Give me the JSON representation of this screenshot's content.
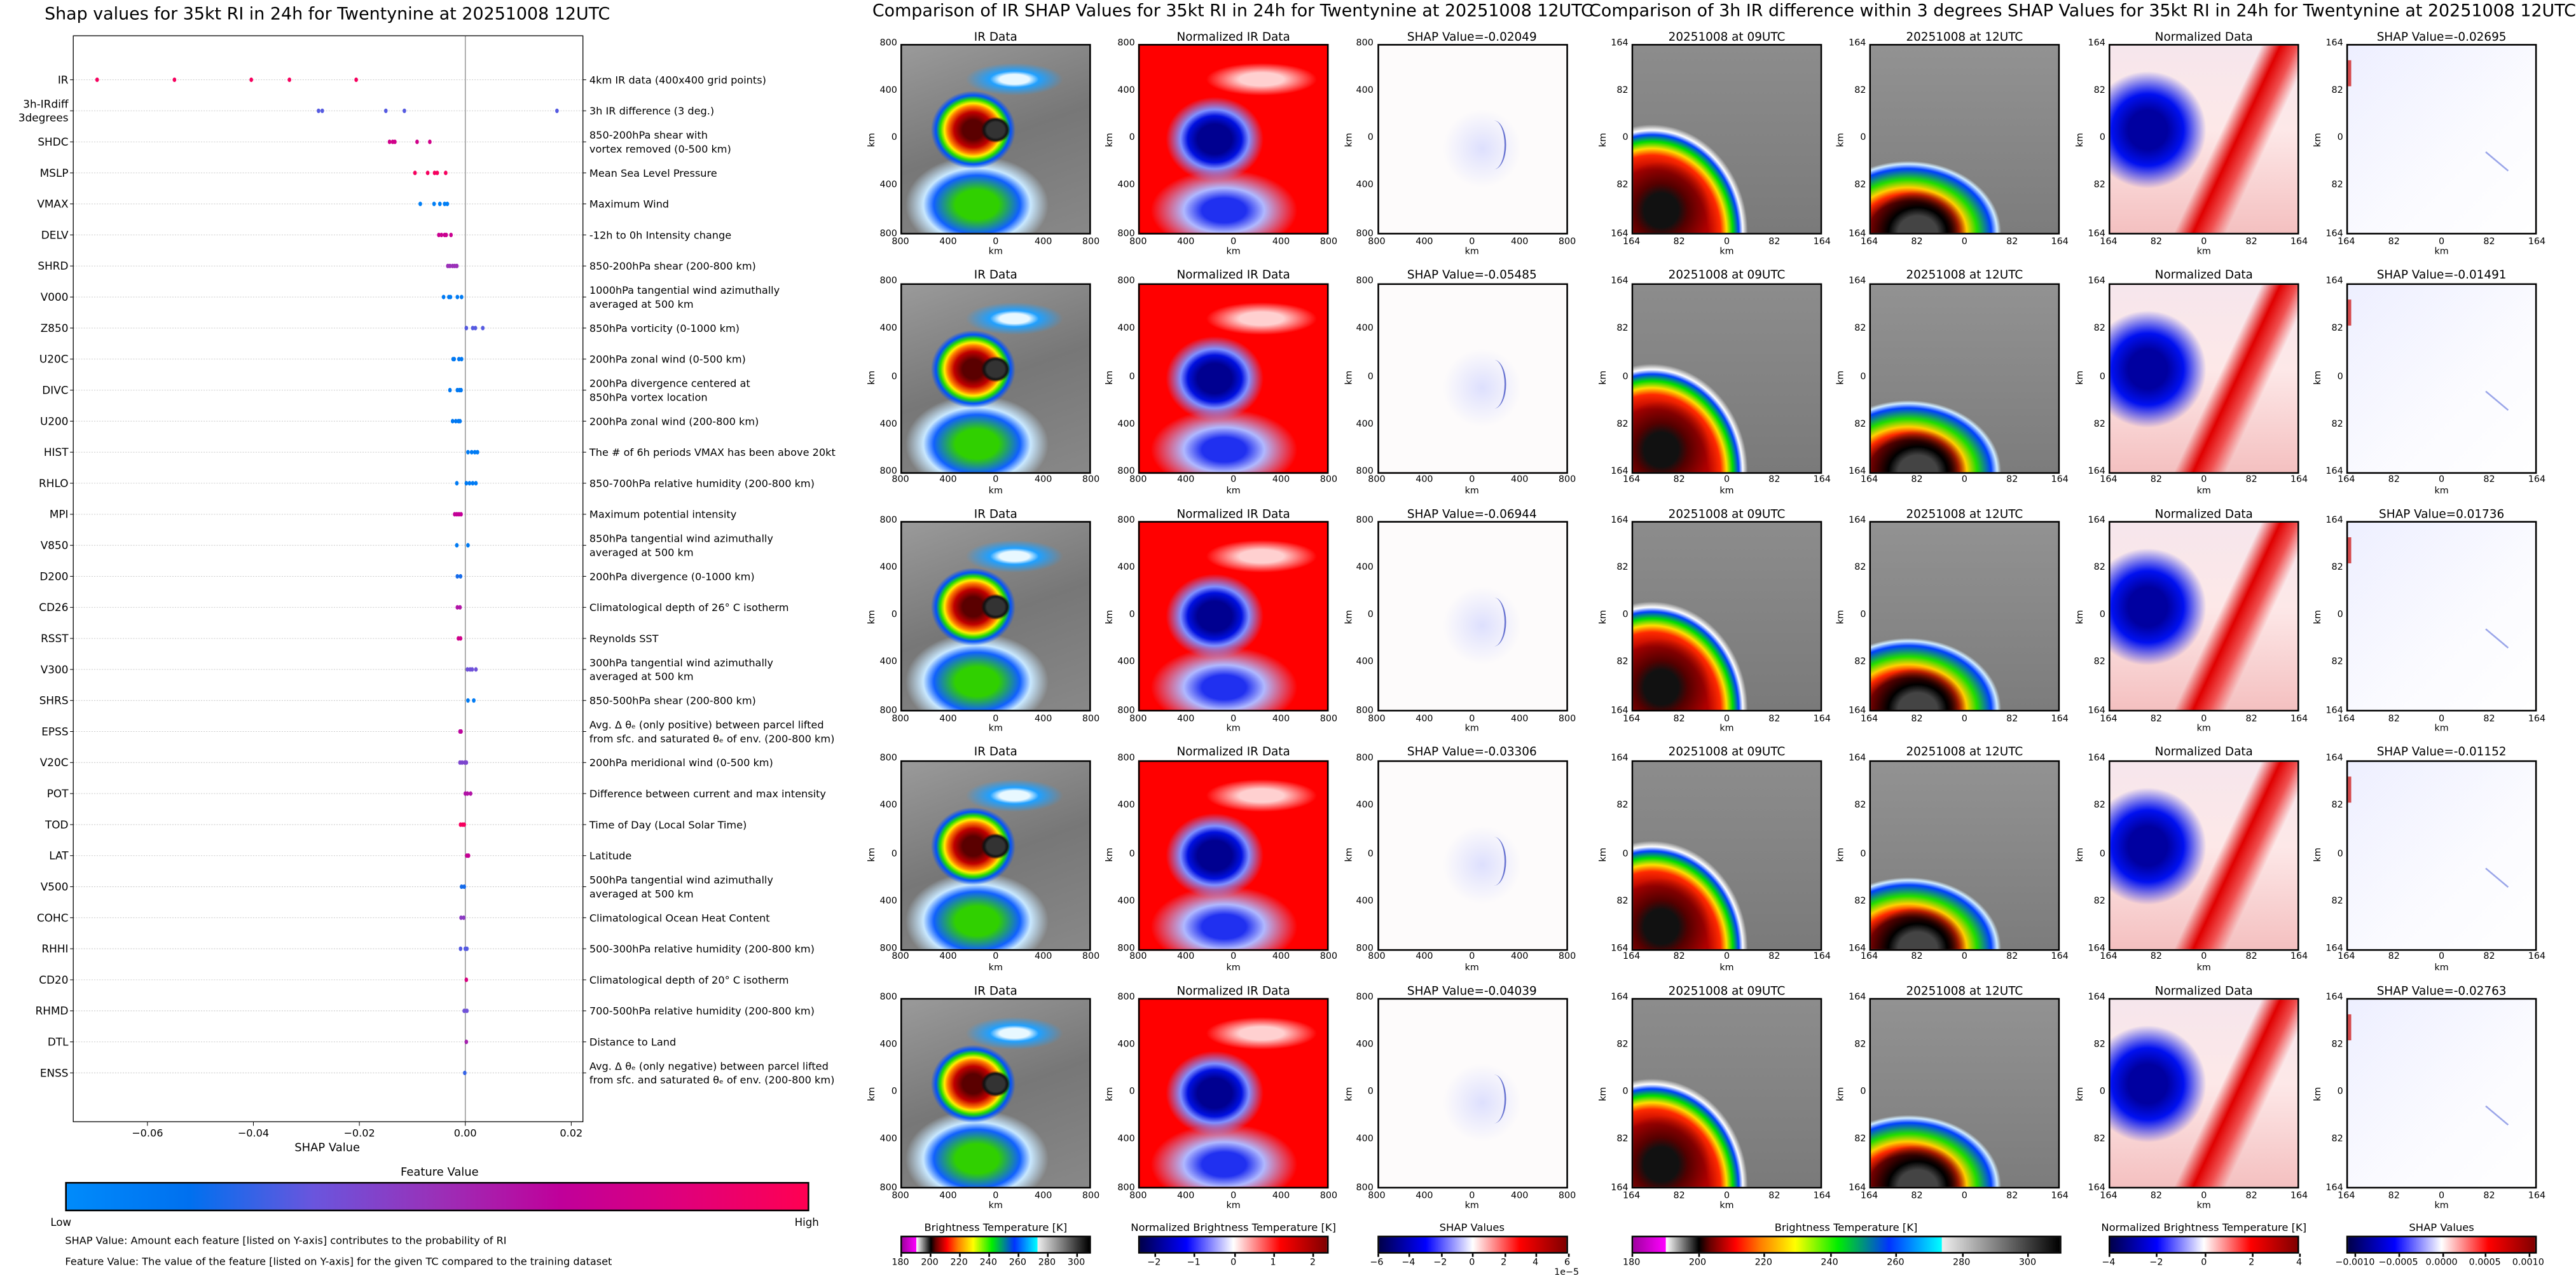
{
  "left": {
    "title": "Shap values for 35kt RI in 24h for Twentynine at 20251008 12UTC",
    "colorbar_title": "Feature Value",
    "colorbar_low": "Low",
    "colorbar_high": "High",
    "note_shap": "SHAP Value: Amount each feature [listed on Y-axis] contributes to the probability of RI",
    "note_feature": "Feature Value: The value of the feature [listed on Y-axis] for the given TC compared to the training dataset"
  },
  "chart_data": [
    {
      "type": "scatter",
      "title": "Shap values for 35kt RI in 24h for Twentynine at 20251008 12UTC",
      "xlabel": "SHAP Value",
      "xlim": [
        -0.074,
        0.0222
      ],
      "xticks": [
        -0.06,
        -0.04,
        -0.02,
        0.0,
        0.02
      ],
      "xtick_labels": [
        "−0.06",
        "−0.04",
        "−0.02",
        "0.00",
        "0.02"
      ],
      "grid": "horizontal dotted",
      "zero_line": true,
      "colorbar": {
        "label": "Feature Value",
        "low": "Low",
        "high": "High",
        "colors": [
          "#008bfb",
          "#0070ef",
          "#6a55dd",
          "#9a30b8",
          "#c0009a",
          "#e0007a",
          "#ff0052"
        ]
      },
      "features": [
        {
          "name": "IR",
          "description": [
            "4km IR data (400x400 grid points)"
          ],
          "feature_value": 0.95,
          "shap": [
            -0.0695,
            -0.0549,
            -0.0404,
            -0.0332,
            -0.0206
          ]
        },
        {
          "name": "3h-IRdiff\n3degrees",
          "description": [
            "3h IR difference (3 deg.)"
          ],
          "feature_value": 0.3,
          "shap": [
            -0.0277,
            -0.027,
            -0.015,
            -0.0115,
            0.0173
          ]
        },
        {
          "name": "SHDC",
          "description": [
            "850-200hPa shear with",
            "vortex removed (0-500 km)"
          ],
          "feature_value": 0.75,
          "shap": [
            -0.0143,
            -0.0137,
            -0.0133,
            -0.0091,
            -0.0067
          ]
        },
        {
          "name": "MSLP",
          "description": [
            "Mean Sea Level Pressure"
          ],
          "feature_value": 0.95,
          "shap": [
            -0.0095,
            -0.0071,
            -0.0058,
            -0.0053,
            -0.0037
          ]
        },
        {
          "name": "VMAX",
          "description": [
            "Maximum Wind"
          ],
          "feature_value": 0.08,
          "shap": [
            -0.0085,
            -0.0059,
            -0.0048,
            -0.0039,
            -0.0034
          ]
        },
        {
          "name": "DELV",
          "description": [
            "-12h to 0h Intensity change"
          ],
          "feature_value": 0.72,
          "shap": [
            -0.005,
            -0.0045,
            -0.0039,
            -0.0036,
            -0.0027
          ]
        },
        {
          "name": "SHRD",
          "description": [
            "850-200hPa shear (200-800 km)"
          ],
          "feature_value": 0.5,
          "shap": [
            -0.0033,
            -0.0029,
            -0.0024,
            -0.002,
            -0.0016
          ]
        },
        {
          "name": "V000",
          "description": [
            "1000hPa tangential wind azimuthally",
            "averaged at 500 km"
          ],
          "feature_value": 0.1,
          "shap": [
            -0.0041,
            -0.0031,
            -0.0028,
            -0.0015,
            -0.0007
          ]
        },
        {
          "name": "Z850",
          "description": [
            "850hPa vorticity (0-1000 km)"
          ],
          "feature_value": 0.3,
          "shap": [
            0.0002,
            0.0014,
            0.0019,
            0.0033
          ]
        },
        {
          "name": "U20C",
          "description": [
            "200hPa zonal wind (0-500 km)"
          ],
          "feature_value": 0.12,
          "shap": [
            -0.0023,
            -0.0021,
            -0.0012,
            -0.0007
          ]
        },
        {
          "name": "DIVC",
          "description": [
            "200hPa divergence centered at",
            "850hPa vortex location"
          ],
          "feature_value": 0.12,
          "shap": [
            -0.0029,
            -0.0015,
            -0.0011,
            -0.0008
          ]
        },
        {
          "name": "U200",
          "description": [
            "200hPa zonal wind (200-800 km)"
          ],
          "feature_value": 0.12,
          "shap": [
            -0.0024,
            -0.0018,
            -0.0013,
            -0.001
          ]
        },
        {
          "name": "HIST",
          "description": [
            "The # of 6h periods VMAX has been above 20kt"
          ],
          "feature_value": 0.1,
          "shap": [
            0.0005,
            0.0012,
            0.0018,
            0.0023
          ]
        },
        {
          "name": "RHLO",
          "description": [
            "850-700hPa relative humidity (200-800 km)"
          ],
          "feature_value": 0.1,
          "shap": [
            -0.0016,
            0.0002,
            0.0008,
            0.0014,
            0.002
          ]
        },
        {
          "name": "MPI",
          "description": [
            "Maximum potential intensity"
          ],
          "feature_value": 0.68,
          "shap": [
            -0.002,
            -0.0016,
            -0.0012,
            -0.0008
          ]
        },
        {
          "name": "V850",
          "description": [
            "850hPa tangential wind azimuthally",
            "averaged at 500 km"
          ],
          "feature_value": 0.1,
          "shap": [
            -0.0016,
            0.0005
          ]
        },
        {
          "name": "D200",
          "description": [
            "200hPa divergence (0-1000 km)"
          ],
          "feature_value": 0.2,
          "shap": [
            -0.0015,
            -0.0009
          ]
        },
        {
          "name": "CD26",
          "description": [
            "Climatological depth of 26° C isotherm"
          ],
          "feature_value": 0.6,
          "shap": [
            -0.0015,
            -0.001
          ]
        },
        {
          "name": "RSST",
          "description": [
            "Reynolds SST"
          ],
          "feature_value": 0.75,
          "shap": [
            -0.0013,
            -0.0009
          ]
        },
        {
          "name": "V300",
          "description": [
            "300hPa tangential wind azimuthally",
            "averaged at 500 km"
          ],
          "feature_value": 0.35,
          "shap": [
            0.0004,
            0.0009,
            0.0013,
            0.002
          ]
        },
        {
          "name": "SHRS",
          "description": [
            "850-500hPa shear (200-800 km)"
          ],
          "feature_value": 0.1,
          "shap": [
            0.0005,
            0.0016
          ]
        },
        {
          "name": "EPSS",
          "description": [
            "Avg. Δ θₑ (only positive) between parcel lifted",
            "from sfc. and saturated θₑ of env. (200-800 km)"
          ],
          "feature_value": 0.65,
          "shap": [
            -0.001,
            -0.0008
          ]
        },
        {
          "name": "V20C",
          "description": [
            "200hPa meridional wind (0-500 km)"
          ],
          "feature_value": 0.4,
          "shap": [
            -0.001,
            -0.0006,
            -0.0001,
            0.0002
          ]
        },
        {
          "name": "POT",
          "description": [
            "Difference between current and max intensity"
          ],
          "feature_value": 0.6,
          "shap": [
            0.0,
            0.0004,
            0.001
          ]
        },
        {
          "name": "TOD",
          "description": [
            "Time of Day (Local Solar Time)"
          ],
          "feature_value": 0.95,
          "shap": [
            -0.0009,
            -0.0005,
            -0.0002
          ]
        },
        {
          "name": "LAT",
          "description": [
            "Latitude"
          ],
          "feature_value": 0.7,
          "shap": [
            0.0003,
            0.0006
          ]
        },
        {
          "name": "V500",
          "description": [
            "500hPa tangential wind azimuthally",
            "averaged at 500 km"
          ],
          "feature_value": 0.2,
          "shap": [
            -0.0007,
            -0.0002
          ]
        },
        {
          "name": "COHC",
          "description": [
            "Climatological Ocean Heat Content"
          ],
          "feature_value": 0.45,
          "shap": [
            -0.0008,
            -0.0003
          ]
        },
        {
          "name": "RHHI",
          "description": [
            "500-300hPa relative humidity (200-800 km)"
          ],
          "feature_value": 0.3,
          "shap": [
            -0.0009,
            0.0,
            0.0003
          ]
        },
        {
          "name": "CD20",
          "description": [
            "Climatological depth of 20° C isotherm"
          ],
          "feature_value": 0.8,
          "shap": [
            0.0002
          ]
        },
        {
          "name": "RHMD",
          "description": [
            "700-500hPa relative humidity (200-800 km)"
          ],
          "feature_value": 0.35,
          "shap": [
            -0.0002,
            0.0003
          ]
        },
        {
          "name": "DTL",
          "description": [
            "Distance to Land"
          ],
          "feature_value": 0.55,
          "shap": [
            0.0002
          ]
        },
        {
          "name": "ENSS",
          "description": [
            "Avg. Δ θₑ (only negative) between parcel lifted",
            "from sfc. and saturated θₑ of env. (200-800 km)"
          ],
          "feature_value": 0.25,
          "shap": [
            -0.0001
          ]
        }
      ]
    },
    {
      "type": "heatmap",
      "title": "Comparison of IR SHAP Values for 35kt RI in 24h for Twentynine at 20251008 12UTC",
      "xlabel": "km",
      "ylabel": "km",
      "xtick_labels": [
        "800",
        "400",
        "0",
        "400",
        "800"
      ],
      "ytick_labels": [
        "800",
        "400",
        "0",
        "400",
        "800"
      ],
      "columns": [
        "IR Data",
        "Normalized IR Data",
        "SHAP Value"
      ],
      "shap_values": [
        "-0.02049",
        "-0.05485",
        "-0.06944",
        "-0.03306",
        "-0.04039"
      ]
    },
    {
      "type": "heatmap",
      "title": "Comparison of 3h IR difference within 3 degrees SHAP Values for 35kt RI in 24h for Twentynine at 20251008 12UTC",
      "xlabel": "km",
      "ylabel": "km",
      "xtick_labels": [
        "164",
        "82",
        "0",
        "82",
        "164"
      ],
      "ytick_labels": [
        "164",
        "82",
        "0",
        "82",
        "164"
      ],
      "columns": [
        "20251008 at 09UTC",
        "20251008 at 12UTC",
        "Normalized Data",
        "SHAP Value"
      ],
      "shap_values": [
        "-0.02695",
        "-0.01491",
        "0.01736",
        "-0.01152",
        "-0.02763"
      ]
    }
  ],
  "ir_group": {
    "title": "Comparison of IR SHAP Values for 35kt RI in 24h for Twentynine at 20251008 12UTC",
    "col_titles": [
      "IR Data",
      "Normalized IR Data"
    ],
    "shap_prefix": "SHAP Value=",
    "axis_label": "km",
    "ticks": [
      "800",
      "400",
      "0",
      "400",
      "800"
    ],
    "colorbars": [
      {
        "title": "Brightness Temperature [K]",
        "ticks": [
          "180",
          "200",
          "220",
          "240",
          "260",
          "280",
          "300"
        ],
        "range": [
          180,
          310
        ]
      },
      {
        "title": "Normalized Brightness Temperature [K]",
        "ticks": [
          "−2",
          "−1",
          "0",
          "1",
          "2"
        ],
        "range": [
          -2.4,
          2.4
        ]
      },
      {
        "title": "SHAP Values",
        "ticks": [
          "−6",
          "−4",
          "−2",
          "0",
          "2",
          "4",
          "6"
        ],
        "range": [
          -6,
          6
        ],
        "offset": "1e−5"
      }
    ]
  },
  "diff_group": {
    "title": "Comparison of 3h IR difference within 3 degrees SHAP Values for 35kt RI in 24h for Twentynine at 20251008 12UTC",
    "col_titles": [
      "20251008 at 09UTC",
      "20251008 at 12UTC",
      "Normalized Data"
    ],
    "shap_prefix": "SHAP Value=",
    "axis_label": "km",
    "ticks": [
      "164",
      "82",
      "0",
      "82",
      "164"
    ],
    "colorbars": [
      {
        "title": "Brightness Temperature [K]",
        "ticks": [
          "180",
          "200",
          "220",
          "240",
          "260",
          "280",
          "300"
        ],
        "range": [
          180,
          310
        ]
      },
      {
        "title": "Normalized Brightness Temperature [K]",
        "ticks": [
          "−4",
          "−2",
          "0",
          "2",
          "4"
        ],
        "range": [
          -4,
          4
        ]
      },
      {
        "title": "SHAP Values",
        "ticks": [
          "−0.0010",
          "−0.0005",
          "0.0000",
          "0.0005",
          "0.0010"
        ],
        "range": [
          -0.0011,
          0.0011
        ]
      }
    ]
  },
  "colormaps": {
    "ir": "linear-gradient(90deg,#a000a0 0%,#ff00ff 7.6%,#fff 7.7%,#000 15.4%,#600 18%,#f00 24%,#ff8000 30%,#ff0 38%,#0e0 48%,#03f 60%,#0ff 72.3%,#eee 72.4%,#000 100%)",
    "bwr": "linear-gradient(90deg,#00004a 0%,#0000ff 25%,#fff 50%,#ff0000 75%,#800000 100%)"
  }
}
